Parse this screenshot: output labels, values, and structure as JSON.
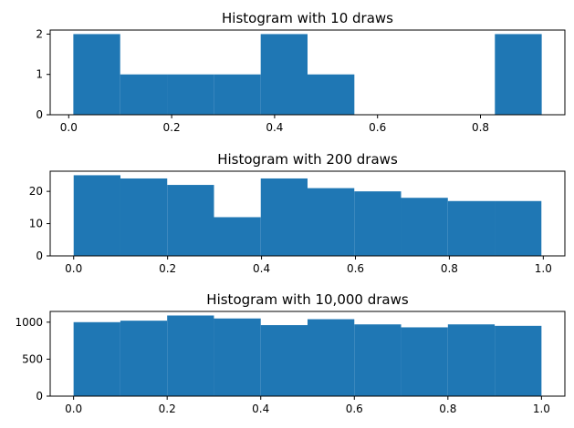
{
  "colors": {
    "bar": "#1f77b4",
    "axis": "#000000",
    "background": "#ffffff"
  },
  "chart_data": [
    {
      "type": "bar",
      "title": "Histogram with 10 draws",
      "xlabel": "",
      "ylabel": "",
      "bin_edges": [
        0.009,
        0.1,
        0.191,
        0.282,
        0.373,
        0.464,
        0.555,
        0.646,
        0.737,
        0.828,
        0.919
      ],
      "values": [
        2,
        1,
        1,
        1,
        2,
        1,
        0,
        0,
        0,
        2
      ],
      "xlim": [
        -0.036,
        0.964
      ],
      "ylim": [
        0,
        2.1
      ],
      "xticks": [
        0.0,
        0.2,
        0.4,
        0.6,
        0.8
      ],
      "xtick_labels": [
        "0.0",
        "0.2",
        "0.4",
        "0.6",
        "0.8"
      ],
      "yticks": [
        0,
        1,
        2
      ],
      "ytick_labels": [
        "0",
        "1",
        "2"
      ]
    },
    {
      "type": "bar",
      "title": "Histogram with 200 draws",
      "xlabel": "",
      "ylabel": "",
      "bin_edges": [
        0.0,
        0.0996,
        0.1992,
        0.2988,
        0.3984,
        0.498,
        0.5976,
        0.6972,
        0.7968,
        0.8964,
        0.996
      ],
      "values": [
        25,
        24,
        22,
        12,
        24,
        21,
        20,
        18,
        17,
        17
      ],
      "xlim": [
        -0.05,
        1.046
      ],
      "ylim": [
        0,
        26.25
      ],
      "xticks": [
        0.0,
        0.2,
        0.4,
        0.6,
        0.8,
        1.0
      ],
      "xtick_labels": [
        "0.0",
        "0.2",
        "0.4",
        "0.6",
        "0.8",
        "1.0"
      ],
      "yticks": [
        0,
        10,
        20
      ],
      "ytick_labels": [
        "0",
        "10",
        "20"
      ]
    },
    {
      "type": "bar",
      "title": "Histogram with 10,000 draws",
      "xlabel": "",
      "ylabel": "",
      "bin_edges": [
        0.0,
        0.1,
        0.2,
        0.3,
        0.4,
        0.5,
        0.6,
        0.7,
        0.8,
        0.9,
        1.0
      ],
      "values": [
        1000,
        1020,
        1090,
        1050,
        960,
        1040,
        970,
        930,
        970,
        950
      ],
      "xlim": [
        -0.05,
        1.05
      ],
      "ylim": [
        0,
        1145
      ],
      "xticks": [
        0.0,
        0.2,
        0.4,
        0.6,
        0.8,
        1.0
      ],
      "xtick_labels": [
        "0.0",
        "0.2",
        "0.4",
        "0.6",
        "0.8",
        "1.0"
      ],
      "yticks": [
        0,
        500,
        1000
      ],
      "ytick_labels": [
        "0",
        "500",
        "1000"
      ]
    }
  ]
}
